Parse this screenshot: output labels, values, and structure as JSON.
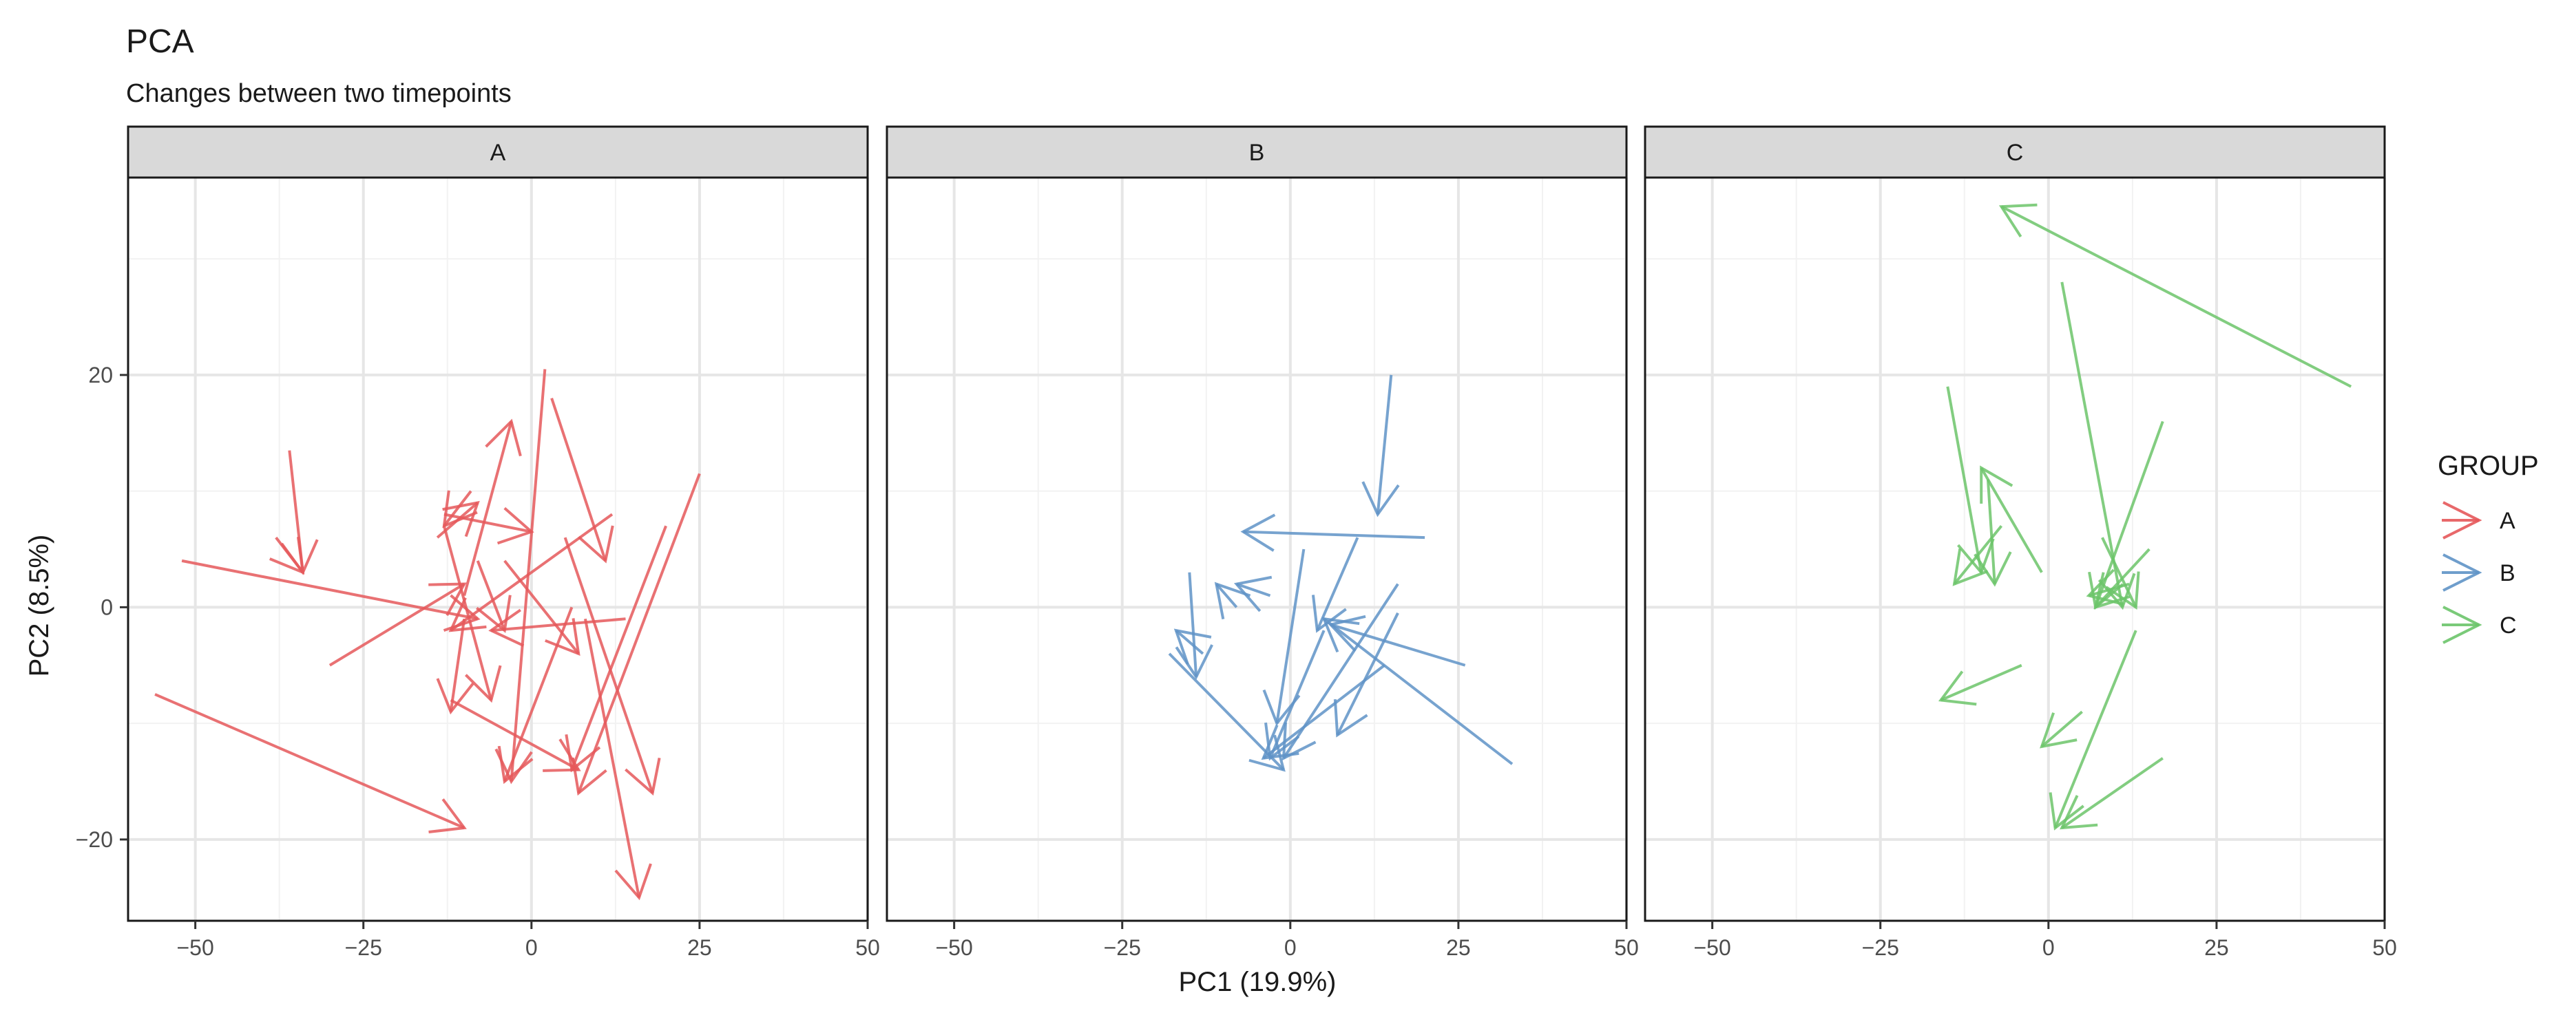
{
  "chart_data": {
    "type": "line",
    "title": "PCA",
    "subtitle": "Changes between two timepoints",
    "xlabel": "PC1 (19.9%)",
    "ylabel": "PC2 (8.5%)",
    "xlim": [
      -60,
      50
    ],
    "ylim": [
      -27,
      37
    ],
    "x_ticks": [
      -50,
      -25,
      0,
      25,
      50
    ],
    "x_tick_labels": [
      "−50",
      "−25",
      "0",
      "25",
      "50"
    ],
    "y_ticks": [
      -20,
      0,
      20
    ],
    "y_tick_labels": [
      "−20",
      "0",
      "20"
    ],
    "grid": true,
    "legend": {
      "title": "GROUP",
      "position": "right",
      "entries": [
        {
          "label": "A",
          "color": "#e5585a"
        },
        {
          "label": "B",
          "color": "#5f93c7"
        },
        {
          "label": "C",
          "color": "#6cc46a"
        }
      ]
    },
    "panels": [
      {
        "label": "A",
        "color": "#e5585a",
        "arrows": [
          {
            "from": [
              -56,
              -7.5
            ],
            "to": [
              -10,
              -19
            ]
          },
          {
            "from": [
              -52,
              4
            ],
            "to": [
              -8,
              -1
            ]
          },
          {
            "from": [
              -36,
              13.5
            ],
            "to": [
              -34,
              3
            ]
          },
          {
            "from": [
              -38,
              6
            ],
            "to": [
              -34,
              3
            ]
          },
          {
            "from": [
              -30,
              -5
            ],
            "to": [
              -10,
              2
            ]
          },
          {
            "from": [
              -13,
              8
            ],
            "to": [
              0,
              6.5
            ]
          },
          {
            "from": [
              -14,
              6
            ],
            "to": [
              -8,
              9
            ]
          },
          {
            "from": [
              -9,
              10
            ],
            "to": [
              -13,
              7
            ]
          },
          {
            "from": [
              -13,
              7
            ],
            "to": [
              -6,
              -8
            ]
          },
          {
            "from": [
              -10,
              -1
            ],
            "to": [
              -12,
              -9
            ]
          },
          {
            "from": [
              -10,
              1
            ],
            "to": [
              -3,
              16
            ]
          },
          {
            "from": [
              -8,
              4
            ],
            "to": [
              -4,
              -2
            ]
          },
          {
            "from": [
              2,
              20.5
            ],
            "to": [
              -3,
              -15
            ]
          },
          {
            "from": [
              3,
              18
            ],
            "to": [
              11,
              4
            ]
          },
          {
            "from": [
              12,
              8
            ],
            "to": [
              -12,
              -2
            ]
          },
          {
            "from": [
              14,
              -1
            ],
            "to": [
              -6,
              -2
            ]
          },
          {
            "from": [
              -12,
              -8
            ],
            "to": [
              7,
              -14
            ]
          },
          {
            "from": [
              -4,
              4
            ],
            "to": [
              7,
              -4
            ]
          },
          {
            "from": [
              25,
              11.5
            ],
            "to": [
              7,
              -16
            ]
          },
          {
            "from": [
              20,
              7
            ],
            "to": [
              6,
              -14
            ]
          },
          {
            "from": [
              5,
              6
            ],
            "to": [
              18,
              -16
            ]
          },
          {
            "from": [
              8,
              -1
            ],
            "to": [
              16,
              -25
            ]
          },
          {
            "from": [
              6,
              0
            ],
            "to": [
              -4,
              -15
            ]
          }
        ]
      },
      {
        "label": "B",
        "color": "#5f93c7",
        "arrows": [
          {
            "from": [
              -18,
              -4
            ],
            "to": [
              -1,
              -14
            ]
          },
          {
            "from": [
              -15,
              3
            ],
            "to": [
              -14,
              -6
            ]
          },
          {
            "from": [
              -13,
              -4
            ],
            "to": [
              -17,
              -2
            ]
          },
          {
            "from": [
              -8,
              0
            ],
            "to": [
              -11,
              2
            ]
          },
          {
            "from": [
              20,
              6
            ],
            "to": [
              -7,
              6.5
            ]
          },
          {
            "from": [
              15,
              20
            ],
            "to": [
              13,
              8
            ]
          },
          {
            "from": [
              33,
              -13.5
            ],
            "to": [
              5,
              -1
            ]
          },
          {
            "from": [
              26,
              -5
            ],
            "to": [
              6,
              -1.5
            ]
          },
          {
            "from": [
              16,
              -0.5
            ],
            "to": [
              7,
              -11
            ]
          },
          {
            "from": [
              14,
              -5
            ],
            "to": [
              -4,
              -13
            ]
          },
          {
            "from": [
              10,
              6
            ],
            "to": [
              4,
              -2
            ]
          },
          {
            "from": [
              16,
              2
            ],
            "to": [
              -1,
              -13
            ]
          },
          {
            "from": [
              2,
              5
            ],
            "to": [
              -2,
              -10
            ]
          },
          {
            "from": [
              -3,
              1
            ],
            "to": [
              -8,
              2
            ]
          },
          {
            "from": [
              5,
              -2
            ],
            "to": [
              -3,
              -13
            ]
          }
        ]
      },
      {
        "label": "C",
        "color": "#6cc46a",
        "arrows": [
          {
            "from": [
              45,
              19
            ],
            "to": [
              -7,
              34.5
            ]
          },
          {
            "from": [
              2,
              28
            ],
            "to": [
              11,
              0
            ]
          },
          {
            "from": [
              13,
              -2
            ],
            "to": [
              1,
              -19
            ]
          },
          {
            "from": [
              17,
              -13
            ],
            "to": [
              2,
              -19
            ]
          },
          {
            "from": [
              5,
              -9
            ],
            "to": [
              -1,
              -12
            ]
          },
          {
            "from": [
              -4,
              -5
            ],
            "to": [
              -16,
              -8
            ]
          },
          {
            "from": [
              -15,
              19
            ],
            "to": [
              -10,
              3
            ]
          },
          {
            "from": [
              -7,
              7
            ],
            "to": [
              -14,
              2
            ]
          },
          {
            "from": [
              -1,
              3
            ],
            "to": [
              -10,
              12
            ]
          },
          {
            "from": [
              -9,
              11
            ],
            "to": [
              -8,
              2
            ]
          },
          {
            "from": [
              12,
              2
            ],
            "to": [
              6,
              1
            ]
          },
          {
            "from": [
              17,
              16
            ],
            "to": [
              7,
              0
            ]
          },
          {
            "from": [
              15,
              5
            ],
            "to": [
              7,
              0
            ]
          },
          {
            "from": [
              8,
              6
            ],
            "to": [
              13,
              0
            ]
          }
        ]
      }
    ]
  }
}
